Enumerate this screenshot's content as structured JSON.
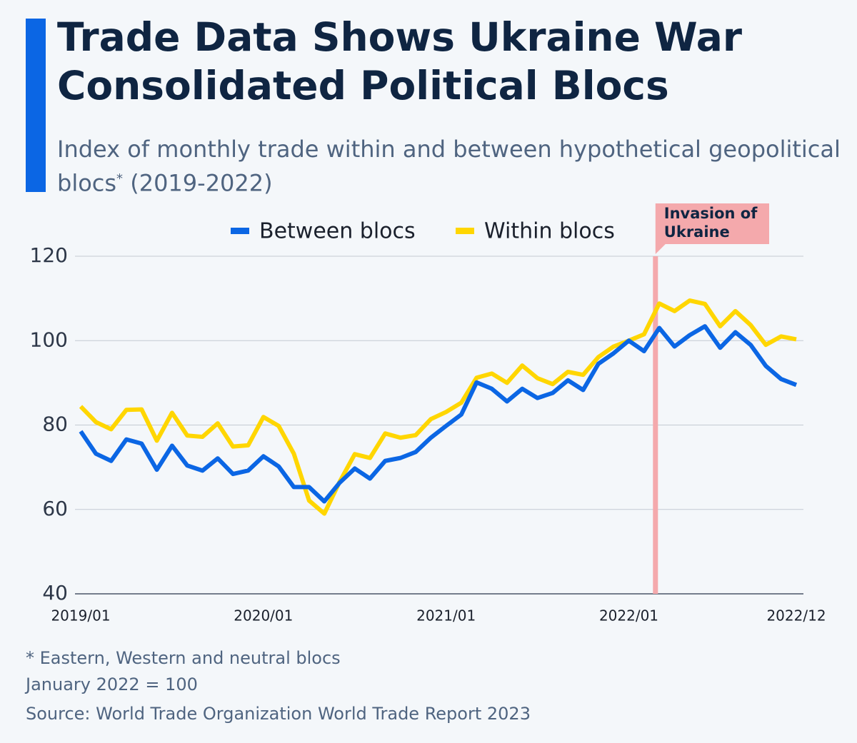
{
  "chart_data": {
    "type": "line",
    "title": "Trade Data Shows Ukraine War Consolidated Political Blocs",
    "subtitle": "Index of monthly trade within and between hypothetical geopolitical blocs",
    "subtitle_mark": "*",
    "subtitle_period": "(2019-2022)",
    "annotation": "Invasion of Ukraine",
    "footnotes": [
      "* Eastern, Western and neutral blocs",
      "January 2022 = 100",
      "Source: World Trade Organization World Trade Report 2023"
    ],
    "categories": [
      "2019/01",
      null,
      null,
      null,
      null,
      null,
      null,
      null,
      null,
      null,
      null,
      null,
      "2020/01",
      null,
      null,
      null,
      null,
      null,
      null,
      null,
      null,
      null,
      null,
      null,
      "2021/01",
      null,
      null,
      null,
      null,
      null,
      null,
      null,
      null,
      null,
      null,
      null,
      "2022/01",
      null,
      null,
      null,
      null,
      null,
      null,
      null,
      null,
      null,
      null,
      "2022/12"
    ],
    "series": [
      {
        "name": "Between blocs",
        "color": "#0b66e4",
        "values": [
          78.5,
          73.2,
          71.5,
          76.6,
          75.6,
          69.4,
          75.1,
          70.4,
          69.2,
          72.1,
          68.4,
          69.2,
          72.6,
          70.2,
          65.3,
          65.3,
          61.9,
          66.3,
          69.7,
          67.3,
          71.5,
          72.2,
          73.6,
          77.0,
          79.8,
          82.5,
          90.1,
          88.6,
          85.6,
          88.6,
          86.4,
          87.6,
          90.6,
          88.3,
          94.5,
          97.0,
          100,
          97.5,
          103.0,
          98.6,
          101.3,
          103.4,
          98.3,
          102.0,
          99.0,
          94.0,
          90.9,
          89.5
        ]
      },
      {
        "name": "Within blocs",
        "color": "#ffd600",
        "values": [
          84.4,
          80.7,
          79.0,
          83.6,
          83.7,
          76.3,
          82.9,
          77.5,
          77.2,
          80.4,
          74.9,
          75.2,
          81.9,
          79.8,
          73.2,
          62.1,
          59.0,
          66.5,
          73.1,
          72.2,
          78.0,
          77.0,
          77.6,
          81.4,
          83.1,
          85.3,
          91.2,
          92.2,
          90.0,
          94.1,
          91.1,
          89.7,
          92.6,
          91.9,
          96.1,
          98.6,
          100,
          101.5,
          108.8,
          107.0,
          109.5,
          108.7,
          103.4,
          107.0,
          103.7,
          99.0,
          101.0,
          100.3
        ]
      }
    ],
    "ylim": [
      40,
      120
    ],
    "yticks": [
      40,
      60,
      80,
      100,
      120
    ],
    "grid": true
  }
}
